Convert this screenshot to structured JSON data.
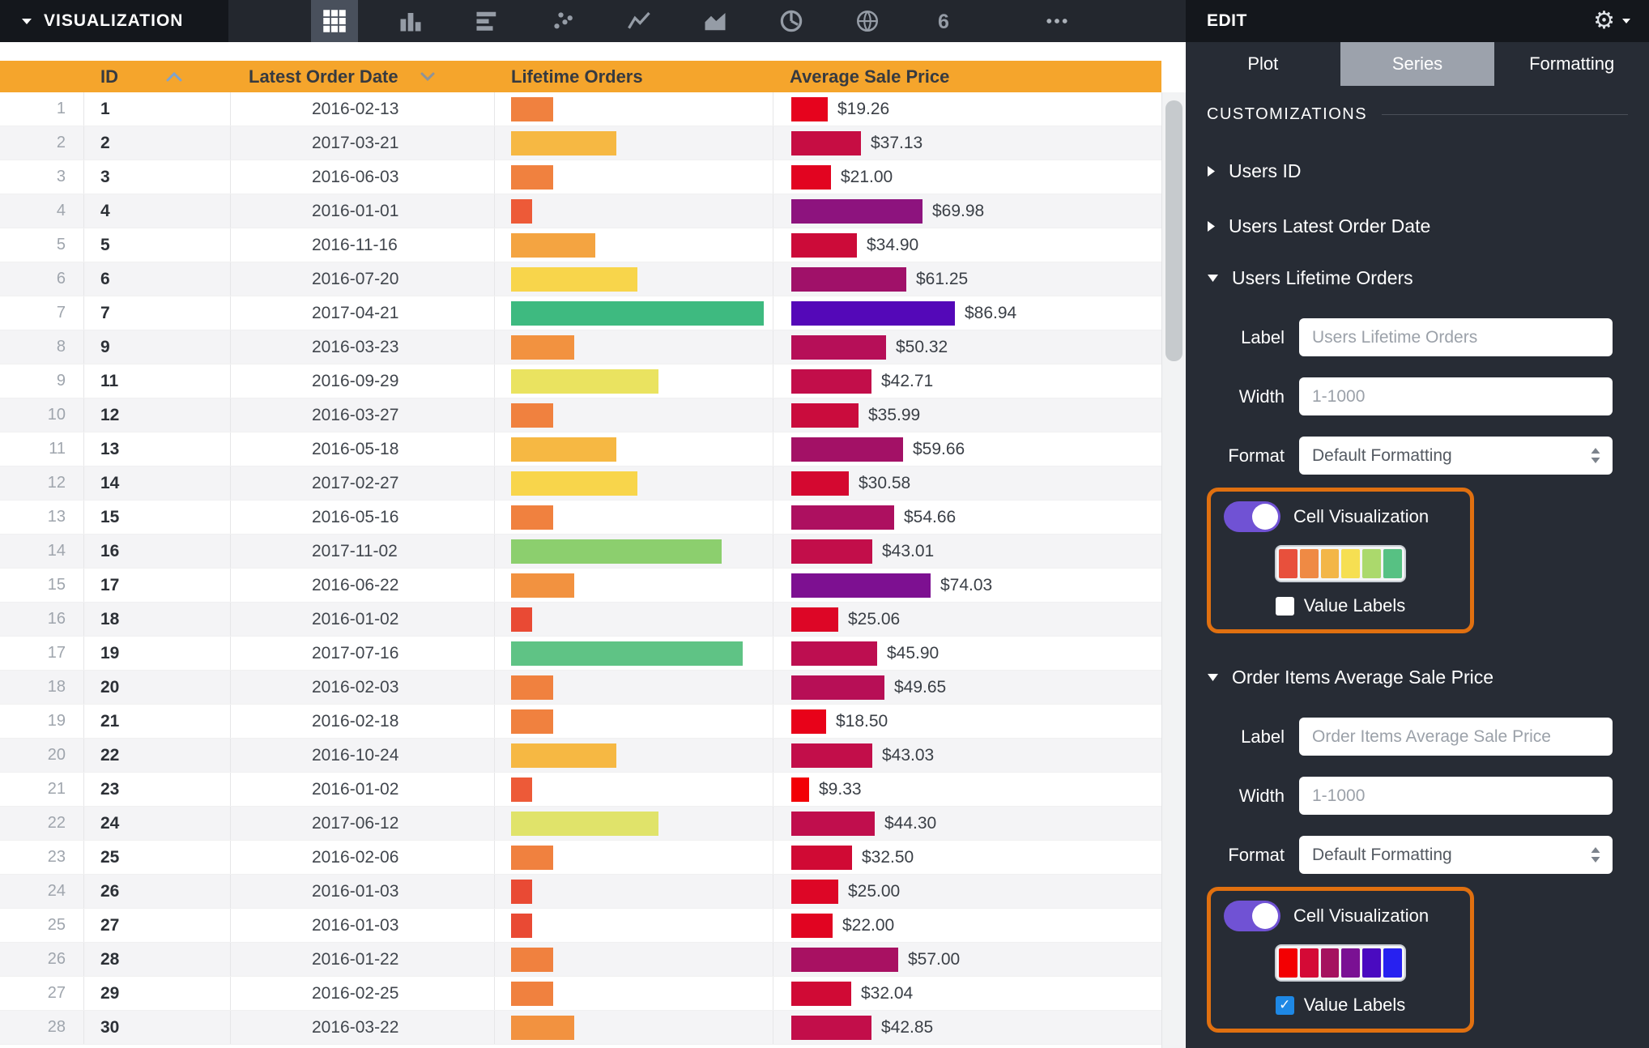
{
  "colors": {
    "header_bg": "#f5a52c",
    "highlight_border": "#e07010",
    "toggle_on": "#7052d4",
    "checkbox_checked": "#1e88e5"
  },
  "topbar": {
    "title": "VISUALIZATION",
    "viz_icons": [
      {
        "name": "table",
        "selected": true
      },
      {
        "name": "column-chart",
        "selected": false
      },
      {
        "name": "bar-chart",
        "selected": false
      },
      {
        "name": "scatter-plot",
        "selected": false
      },
      {
        "name": "line-chart",
        "selected": false
      },
      {
        "name": "area-chart",
        "selected": false
      },
      {
        "name": "donut-chart",
        "selected": false
      },
      {
        "name": "map",
        "selected": false
      },
      {
        "name": "single-value",
        "selected": false
      },
      {
        "name": "more-viz-types",
        "selected": false
      }
    ]
  },
  "edit_panel": {
    "title": "EDIT",
    "tabs": [
      {
        "label": "Plot",
        "active": false
      },
      {
        "label": "Series",
        "active": true
      },
      {
        "label": "Formatting",
        "active": false
      }
    ],
    "customizations_title": "CUSTOMIZATIONS",
    "items": [
      {
        "title": "Users ID",
        "expanded": false
      },
      {
        "title": "Users Latest Order Date",
        "expanded": false
      },
      {
        "title": "Users Lifetime Orders",
        "expanded": true,
        "form": {
          "label_field": {
            "label": "Label",
            "placeholder": "Users Lifetime Orders"
          },
          "width_field": {
            "label": "Width",
            "placeholder": "1-1000"
          },
          "format_field": {
            "label": "Format",
            "value": "Default Formatting"
          },
          "cell_visualization": {
            "label": "Cell Visualization",
            "enabled": true,
            "palette": [
              "#e8503c",
              "#ef8a44",
              "#f3b647",
              "#f6df52",
              "#abd96c",
              "#57c183"
            ],
            "value_labels": {
              "label": "Value Labels",
              "checked": false
            }
          }
        }
      },
      {
        "title": "Order Items Average Sale Price",
        "expanded": true,
        "form": {
          "label_field": {
            "label": "Label",
            "placeholder": "Order Items Average Sale Price"
          },
          "width_field": {
            "label": "Width",
            "placeholder": "1-1000"
          },
          "format_field": {
            "label": "Format",
            "value": "Default Formatting"
          },
          "cell_visualization": {
            "label": "Cell Visualization",
            "enabled": true,
            "palette": [
              "#f30002",
              "#d40a36",
              "#a5125f",
              "#7a1193",
              "#4a0ac0",
              "#2721f0"
            ],
            "value_labels": {
              "label": "Value Labels",
              "checked": true
            }
          }
        }
      }
    ]
  },
  "table": {
    "columns": [
      {
        "label": "ID",
        "sort": "asc"
      },
      {
        "label": "Latest Order Date",
        "menu": true
      },
      {
        "label": "Lifetime Orders"
      },
      {
        "label": "Average Sale Price"
      }
    ],
    "rows": [
      {
        "num": 1,
        "id": "1",
        "date": "2016-02-13",
        "orders": 2,
        "orders_color": "#f0813f",
        "price": 19.26,
        "price_label": "$19.26",
        "price_color": "#e6031d"
      },
      {
        "num": 2,
        "id": "2",
        "date": "2017-03-21",
        "orders": 5,
        "orders_color": "#f6b843",
        "price": 37.13,
        "price_label": "$37.13",
        "price_color": "#c60d43"
      },
      {
        "num": 3,
        "id": "3",
        "date": "2016-06-03",
        "orders": 2,
        "orders_color": "#f0813f",
        "price": 21.0,
        "price_label": "$21.00",
        "price_color": "#e20420"
      },
      {
        "num": 4,
        "id": "4",
        "date": "2016-01-01",
        "orders": 1,
        "orders_color": "#ed5a38",
        "price": 69.98,
        "price_label": "$69.98",
        "price_color": "#8d137e"
      },
      {
        "num": 5,
        "id": "5",
        "date": "2016-11-16",
        "orders": 4,
        "orders_color": "#f4a441",
        "price": 34.9,
        "price_label": "$34.90",
        "price_color": "#cc0b39"
      },
      {
        "num": 6,
        "id": "6",
        "date": "2016-07-20",
        "orders": 6,
        "orders_color": "#f8d54b",
        "price": 61.25,
        "price_label": "$61.25",
        "price_color": "#a01169"
      },
      {
        "num": 7,
        "id": "7",
        "date": "2017-04-21",
        "orders": 12,
        "orders_color": "#3eba80",
        "price": 86.94,
        "price_label": "$86.94",
        "price_color": "#5408b8"
      },
      {
        "num": 8,
        "id": "9",
        "date": "2016-03-23",
        "orders": 3,
        "orders_color": "#f29240",
        "price": 50.32,
        "price_label": "$50.32",
        "price_color": "#b60f58"
      },
      {
        "num": 9,
        "id": "11",
        "date": "2016-09-29",
        "orders": 7,
        "orders_color": "#eae360",
        "price": 42.71,
        "price_label": "$42.71",
        "price_color": "#c20e4a"
      },
      {
        "num": 10,
        "id": "12",
        "date": "2016-03-27",
        "orders": 2,
        "orders_color": "#f0813f",
        "price": 35.99,
        "price_label": "$35.99",
        "price_color": "#ca0c3d"
      },
      {
        "num": 11,
        "id": "13",
        "date": "2016-05-18",
        "orders": 5,
        "orders_color": "#f6b843",
        "price": 59.66,
        "price_label": "$59.66",
        "price_color": "#a31166"
      },
      {
        "num": 12,
        "id": "14",
        "date": "2017-02-27",
        "orders": 6,
        "orders_color": "#f8d54b",
        "price": 30.58,
        "price_label": "$30.58",
        "price_color": "#d40830"
      },
      {
        "num": 13,
        "id": "15",
        "date": "2016-05-16",
        "orders": 2,
        "orders_color": "#f0813f",
        "price": 54.66,
        "price_label": "$54.66",
        "price_color": "#ad1060"
      },
      {
        "num": 14,
        "id": "16",
        "date": "2017-11-02",
        "orders": 10,
        "orders_color": "#8ccf6e",
        "price": 43.01,
        "price_label": "$43.01",
        "price_color": "#c20e4a"
      },
      {
        "num": 15,
        "id": "17",
        "date": "2016-06-22",
        "orders": 3,
        "orders_color": "#f29240",
        "price": 74.03,
        "price_label": "$74.03",
        "price_color": "#7d1091"
      },
      {
        "num": 16,
        "id": "18",
        "date": "2016-01-02",
        "orders": 1,
        "orders_color": "#e94a34",
        "price": 25.06,
        "price_label": "$25.06",
        "price_color": "#dd0626"
      },
      {
        "num": 17,
        "id": "19",
        "date": "2017-07-16",
        "orders": 11,
        "orders_color": "#5fc385",
        "price": 45.9,
        "price_label": "$45.90",
        "price_color": "#bd0e50"
      },
      {
        "num": 18,
        "id": "20",
        "date": "2016-02-03",
        "orders": 2,
        "orders_color": "#f0813f",
        "price": 49.65,
        "price_label": "$49.65",
        "price_color": "#b70f56"
      },
      {
        "num": 19,
        "id": "21",
        "date": "2016-02-18",
        "orders": 2,
        "orders_color": "#f0813f",
        "price": 18.5,
        "price_label": "$18.50",
        "price_color": "#e80219"
      },
      {
        "num": 20,
        "id": "22",
        "date": "2016-10-24",
        "orders": 5,
        "orders_color": "#f6b843",
        "price": 43.03,
        "price_label": "$43.03",
        "price_color": "#c20e4a"
      },
      {
        "num": 21,
        "id": "23",
        "date": "2016-01-02",
        "orders": 1,
        "orders_color": "#ed5a38",
        "price": 9.33,
        "price_label": "$9.33",
        "price_color": "#f20005"
      },
      {
        "num": 22,
        "id": "24",
        "date": "2017-06-12",
        "orders": 7,
        "orders_color": "#e0e36a",
        "price": 44.3,
        "price_label": "$44.30",
        "price_color": "#c00e4d"
      },
      {
        "num": 23,
        "id": "25",
        "date": "2016-02-06",
        "orders": 2,
        "orders_color": "#f0813f",
        "price": 32.5,
        "price_label": "$32.50",
        "price_color": "#d00a34"
      },
      {
        "num": 24,
        "id": "26",
        "date": "2016-01-03",
        "orders": 1,
        "orders_color": "#e94a34",
        "price": 25.0,
        "price_label": "$25.00",
        "price_color": "#dd0626"
      },
      {
        "num": 25,
        "id": "27",
        "date": "2016-01-03",
        "orders": 1,
        "orders_color": "#e94a34",
        "price": 22.0,
        "price_label": "$22.00",
        "price_color": "#e10421"
      },
      {
        "num": 26,
        "id": "28",
        "date": "2016-01-22",
        "orders": 2,
        "orders_color": "#f0813f",
        "price": 57.0,
        "price_label": "$57.00",
        "price_color": "#a81162"
      },
      {
        "num": 27,
        "id": "29",
        "date": "2016-02-25",
        "orders": 2,
        "orders_color": "#f0813f",
        "price": 32.04,
        "price_label": "$32.04",
        "price_color": "#d00a35"
      },
      {
        "num": 28,
        "id": "30",
        "date": "2016-03-22",
        "orders": 3,
        "orders_color": "#f29240",
        "price": 42.85,
        "price_label": "$42.85",
        "price_color": "#c20e4a"
      }
    ]
  }
}
